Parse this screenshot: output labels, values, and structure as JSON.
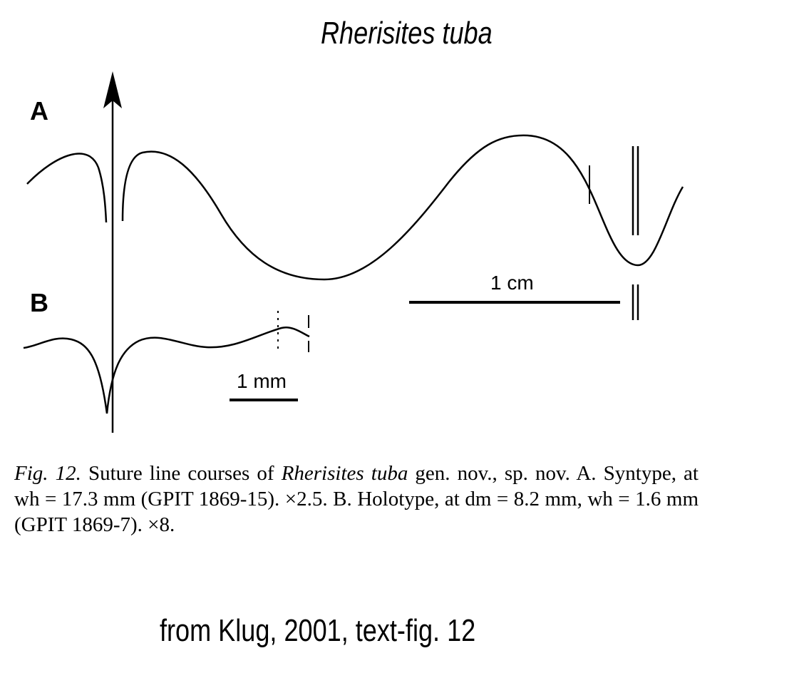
{
  "title": "Rherisites tuba",
  "panels": {
    "a": {
      "label": "A",
      "scale_label": "1 cm"
    },
    "b": {
      "label": "B",
      "scale_label": "1 mm"
    }
  },
  "caption": {
    "fig_label": "Fig. 12.",
    "text_1": " Suture line courses of ",
    "taxon": "Rherisites tuba",
    "text_2": " gen. nov., sp. nov. A. Syntype, at wh = 17.3 mm (GPIT 1869-15). ×2.5. B. Holotype, at dm = 8.2 mm, wh = 1.6 mm (GPIT 1869-7). ×8."
  },
  "source": "from Klug, 2001, text-fig. 12"
}
